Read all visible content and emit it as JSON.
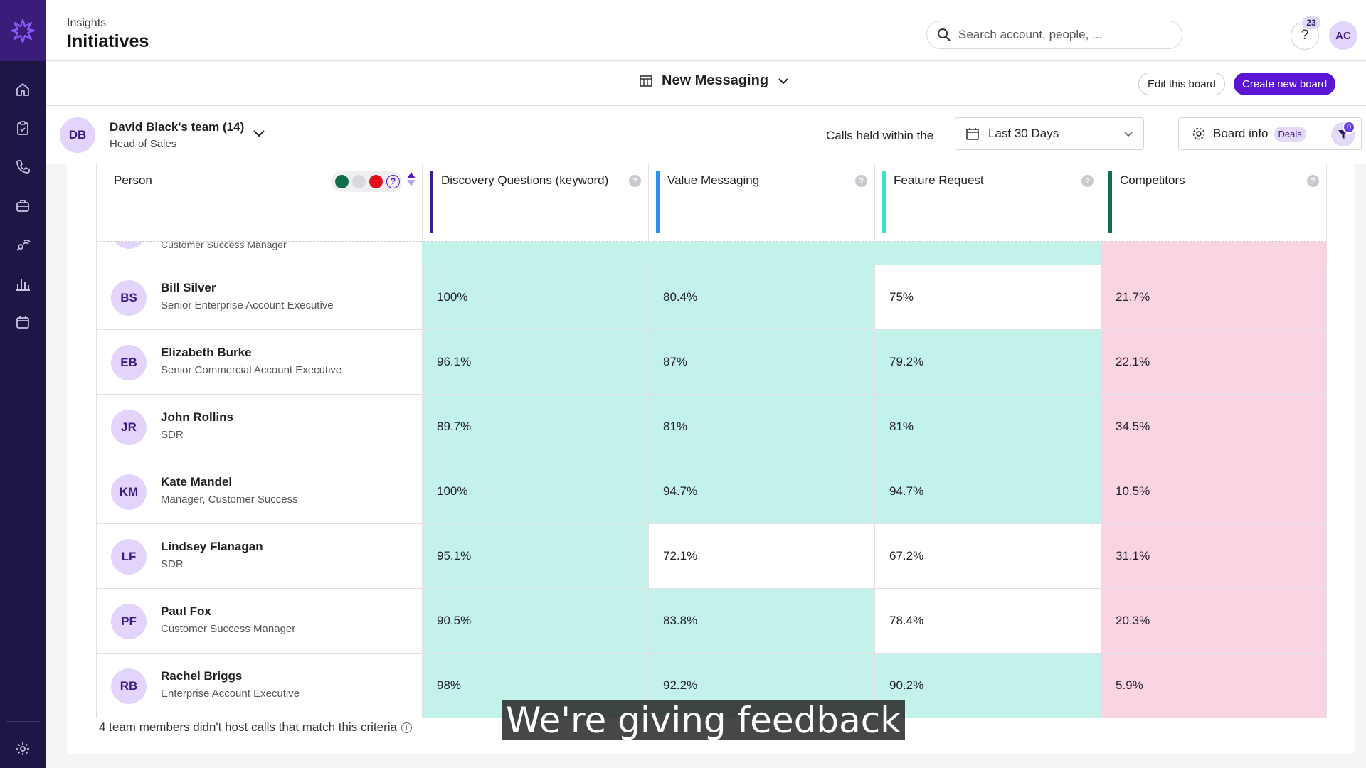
{
  "header": {
    "breadcrumb": "Insights",
    "title": "Initiatives",
    "search_placeholder": "Search account, people, ...",
    "help_count": "23",
    "user_initials": "AC"
  },
  "board": {
    "name": "New Messaging",
    "edit_label": "Edit this board",
    "create_label": "Create new board"
  },
  "filters": {
    "team_initials": "DB",
    "team_name": "David Black's team (14)",
    "team_role": "Head of Sales",
    "calls_label": "Calls held within the",
    "date_range": "Last 30 Days",
    "board_info_label": "Board info",
    "deals_label": "Deals",
    "filter_count": "0"
  },
  "colors": {
    "good": "#c2f2ea",
    "neutral": "#ffffff",
    "bad": "#fbd4e3",
    "accent": "#5b14d4"
  },
  "table": {
    "person_header": "Person",
    "columns": [
      {
        "label": "Discovery Questions (keyword)",
        "color": "#3a1d9a"
      },
      {
        "label": "Value Messaging",
        "color": "#2f8ee8"
      },
      {
        "label": "Feature Request",
        "color": "#3fe0c8"
      },
      {
        "label": "Competitors",
        "color": "#0f6e4a"
      }
    ],
    "partial_row_role": "Customer Success Manager",
    "rows": [
      {
        "initials": "BS",
        "name": "Bill Silver",
        "role": "Senior Enterprise Account Executive",
        "values": [
          "100%",
          "80.4%",
          "75%",
          "21.7%"
        ],
        "status": [
          "good",
          "good",
          "neutral",
          "bad"
        ]
      },
      {
        "initials": "EB",
        "name": "Elizabeth Burke",
        "role": "Senior Commercial Account Executive",
        "values": [
          "96.1%",
          "87%",
          "79.2%",
          "22.1%"
        ],
        "status": [
          "good",
          "good",
          "good",
          "bad"
        ]
      },
      {
        "initials": "JR",
        "name": "John Rollins",
        "role": "SDR",
        "values": [
          "89.7%",
          "81%",
          "81%",
          "34.5%"
        ],
        "status": [
          "good",
          "good",
          "good",
          "bad"
        ]
      },
      {
        "initials": "KM",
        "name": "Kate Mandel",
        "role": "Manager, Customer Success",
        "values": [
          "100%",
          "94.7%",
          "94.7%",
          "10.5%"
        ],
        "status": [
          "good",
          "good",
          "good",
          "bad"
        ]
      },
      {
        "initials": "LF",
        "name": "Lindsey Flanagan",
        "role": "SDR",
        "values": [
          "95.1%",
          "72.1%",
          "67.2%",
          "31.1%"
        ],
        "status": [
          "good",
          "neutral",
          "neutral",
          "bad"
        ]
      },
      {
        "initials": "PF",
        "name": "Paul Fox",
        "role": "Customer Success Manager",
        "values": [
          "90.5%",
          "83.8%",
          "78.4%",
          "20.3%"
        ],
        "status": [
          "good",
          "good",
          "neutral",
          "bad"
        ]
      },
      {
        "initials": "RB",
        "name": "Rachel Briggs",
        "role": "Enterprise Account Executive",
        "values": [
          "98%",
          "92.2%",
          "90.2%",
          "5.9%"
        ],
        "status": [
          "good",
          "good",
          "good",
          "bad"
        ]
      }
    ],
    "footer_note": "4 team members didn't host calls that match this criteria"
  },
  "caption": "We're giving feedback"
}
